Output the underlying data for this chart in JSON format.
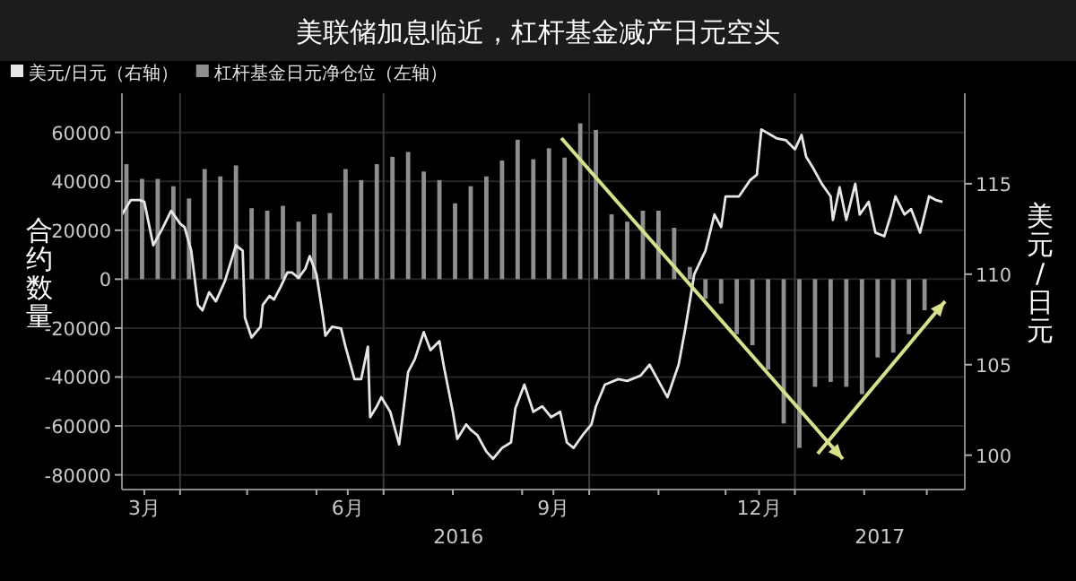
{
  "chart_data": {
    "type": "bar",
    "title": "美联储加息临近，杠杆基金减产日元空头",
    "ylabel": "合约数量",
    "y2label": "美元/日元",
    "legend": "top left",
    "grid": "y",
    "xlim": [
      "2016-03-06",
      "2017-03-18"
    ],
    "xticks": [
      {
        "value": "2016-03-16",
        "label": "3月"
      },
      {
        "value": "2016-06-15",
        "label": "6月"
      },
      {
        "value": "2016-09-15",
        "label": "9月"
      },
      {
        "value": "2016-12-16",
        "label": "12月"
      },
      {
        "value": "2016-04-01",
        "label": null
      },
      {
        "value": "2016-05-01",
        "label": null
      },
      {
        "value": "2016-06-01",
        "label": null
      },
      {
        "value": "2016-07-01",
        "label": null
      },
      {
        "value": "2016-08-01",
        "label": null
      },
      {
        "value": "2016-09-01",
        "label": null
      },
      {
        "value": "2016-10-01",
        "label": null
      },
      {
        "value": "2016-11-01",
        "label": null
      },
      {
        "value": "2016-12-01",
        "label": null
      },
      {
        "value": "2017-01-01",
        "label": null
      },
      {
        "value": "2017-02-01",
        "label": null
      },
      {
        "value": "2017-03-01",
        "label": null
      }
    ],
    "ylim": [
      -86000,
      76000
    ],
    "yticks": [
      -80000,
      -60000,
      -40000,
      -20000,
      0,
      20000,
      40000,
      60000
    ],
    "y2lim": [
      98.1,
      120
    ],
    "y2ticks": [
      100,
      105,
      110,
      115
    ],
    "ref_lines": [
      {
        "axis": "x",
        "value": "2016-04-01",
        "color": "#3a3a3a"
      },
      {
        "axis": "x",
        "value": "2016-07-01",
        "color": "#3a3a3a"
      },
      {
        "axis": "x",
        "value": "2016-10-01",
        "color": "#3a3a3a"
      },
      {
        "axis": "x",
        "value": "2017-01-01",
        "color": "#3a3a3a"
      }
    ],
    "annotations": [
      "2016",
      "2017"
    ],
    "series": [
      {
        "name": "美元/日元（右轴）",
        "type": "line",
        "axis": "y2",
        "color": "#e6e6e6",
        "x": [
          "2016-03-06",
          "2016-03-10",
          "2016-03-14",
          "2016-03-16",
          "2016-03-20",
          "2016-03-24",
          "2016-03-28",
          "2016-04-01",
          "2016-04-03",
          "2016-04-06",
          "2016-04-09",
          "2016-04-11",
          "2016-04-14",
          "2016-04-17",
          "2016-04-21",
          "2016-04-26",
          "2016-04-29",
          "2016-04-30",
          "2016-05-03",
          "2016-05-07",
          "2016-05-08",
          "2016-05-11",
          "2016-05-13",
          "2016-05-16",
          "2016-05-19",
          "2016-05-21",
          "2016-05-24",
          "2016-05-27",
          "2016-05-29",
          "2016-06-01",
          "2016-06-04",
          "2016-06-05",
          "2016-06-08",
          "2016-06-12",
          "2016-06-14",
          "2016-06-18",
          "2016-06-21",
          "2016-06-24",
          "2016-06-25",
          "2016-06-28",
          "2016-06-30",
          "2016-07-04",
          "2016-07-08",
          "2016-07-12",
          "2016-07-15",
          "2016-07-19",
          "2016-07-22",
          "2016-07-26",
          "2016-07-28",
          "2016-08-01",
          "2016-08-03",
          "2016-08-07",
          "2016-08-09",
          "2016-08-12",
          "2016-08-16",
          "2016-08-19",
          "2016-08-23",
          "2016-08-27",
          "2016-08-29",
          "2016-09-02",
          "2016-09-06",
          "2016-09-10",
          "2016-09-14",
          "2016-09-18",
          "2016-09-21",
          "2016-09-24",
          "2016-09-28",
          "2016-10-02",
          "2016-10-04",
          "2016-10-08",
          "2016-10-14",
          "2016-10-18",
          "2016-10-24",
          "2016-10-28",
          "2016-11-01",
          "2016-11-05",
          "2016-11-10",
          "2016-11-13",
          "2016-11-17",
          "2016-11-22",
          "2016-11-26",
          "2016-11-29",
          "2016-12-01",
          "2016-12-07",
          "2016-12-12",
          "2016-12-15",
          "2016-12-17",
          "2016-12-24",
          "2016-12-28",
          "2017-01-01",
          "2017-01-04",
          "2017-01-06",
          "2017-01-09",
          "2017-01-13",
          "2017-01-17",
          "2017-01-18",
          "2017-01-21",
          "2017-01-24",
          "2017-01-28",
          "2017-01-30",
          "2017-02-03",
          "2017-02-06",
          "2017-02-10",
          "2017-02-13",
          "2017-02-15",
          "2017-02-19",
          "2017-02-22",
          "2017-02-26",
          "2017-03-02",
          "2017-03-05",
          "2017-03-08"
        ],
        "values": [
          113.3,
          114.1,
          114.1,
          114.0,
          111.6,
          112.5,
          113.5,
          112.8,
          112.6,
          111.3,
          108.3,
          108.0,
          109.0,
          108.5,
          109.6,
          111.6,
          111.3,
          107.6,
          106.5,
          107.1,
          108.3,
          108.8,
          108.6,
          109.3,
          110.1,
          110.1,
          109.8,
          110.3,
          111.0,
          110.0,
          107.6,
          106.6,
          107.1,
          107.0,
          106.0,
          104.2,
          104.2,
          106.0,
          102.1,
          102.7,
          103.2,
          102.4,
          100.6,
          104.6,
          105.3,
          106.8,
          105.8,
          106.3,
          104.9,
          102.4,
          100.9,
          101.7,
          101.4,
          101.1,
          100.2,
          99.8,
          100.4,
          100.7,
          102.6,
          103.9,
          102.4,
          102.7,
          102.1,
          102.4,
          100.7,
          100.4,
          101.1,
          101.7,
          102.7,
          103.9,
          104.2,
          104.1,
          104.4,
          105.0,
          104.1,
          103.2,
          105.0,
          107.0,
          110.0,
          111.3,
          113.3,
          112.6,
          114.3,
          114.3,
          115.2,
          115.5,
          118.0,
          117.5,
          117.4,
          116.9,
          117.7,
          116.5,
          115.9,
          115.0,
          114.3,
          113.0,
          114.8,
          113.0,
          115.0,
          113.3,
          114.0,
          112.3,
          112.1,
          113.3,
          114.3,
          113.3,
          113.6,
          112.3,
          114.3,
          114.1,
          114.0
        ]
      },
      {
        "name": "杠杆基金日元净仓位（左轴）",
        "color": "#8f8f8f",
        "x": [
          "2016-03-08",
          "2016-03-15",
          "2016-03-22",
          "2016-03-29",
          "2016-04-05",
          "2016-04-12",
          "2016-04-19",
          "2016-04-26",
          "2016-05-03",
          "2016-05-10",
          "2016-05-17",
          "2016-05-24",
          "2016-05-31",
          "2016-06-07",
          "2016-06-14",
          "2016-06-21",
          "2016-06-28",
          "2016-07-05",
          "2016-07-12",
          "2016-07-19",
          "2016-07-26",
          "2016-08-02",
          "2016-08-09",
          "2016-08-16",
          "2016-08-23",
          "2016-08-30",
          "2016-09-06",
          "2016-09-13",
          "2016-09-20",
          "2016-09-27",
          "2016-10-04",
          "2016-10-11",
          "2016-10-18",
          "2016-10-25",
          "2016-11-01",
          "2016-11-08",
          "2016-11-15",
          "2016-11-22",
          "2016-11-29",
          "2016-12-06",
          "2016-12-13",
          "2016-12-20",
          "2016-12-27",
          "2017-01-03",
          "2017-01-10",
          "2017-01-17",
          "2017-01-24",
          "2017-01-31",
          "2017-02-07",
          "2017-02-14",
          "2017-02-21",
          "2017-02-28"
        ],
        "values": [
          47000,
          41000,
          41000,
          38000,
          33000,
          45000,
          42000,
          46500,
          29000,
          28000,
          30000,
          23500,
          26500,
          27000,
          45000,
          40500,
          47000,
          50000,
          52000,
          44000,
          40500,
          31000,
          38000,
          42000,
          48500,
          57000,
          49000,
          53500,
          49700,
          63700,
          61000,
          26500,
          23500,
          28000,
          28000,
          21000,
          5000,
          -8000,
          -10000,
          -22500,
          -27000,
          -37000,
          -59000,
          -69000,
          -44000,
          -42000,
          -44000,
          -47000,
          -32000,
          -30000,
          -22500,
          -12700
        ]
      }
    ]
  }
}
